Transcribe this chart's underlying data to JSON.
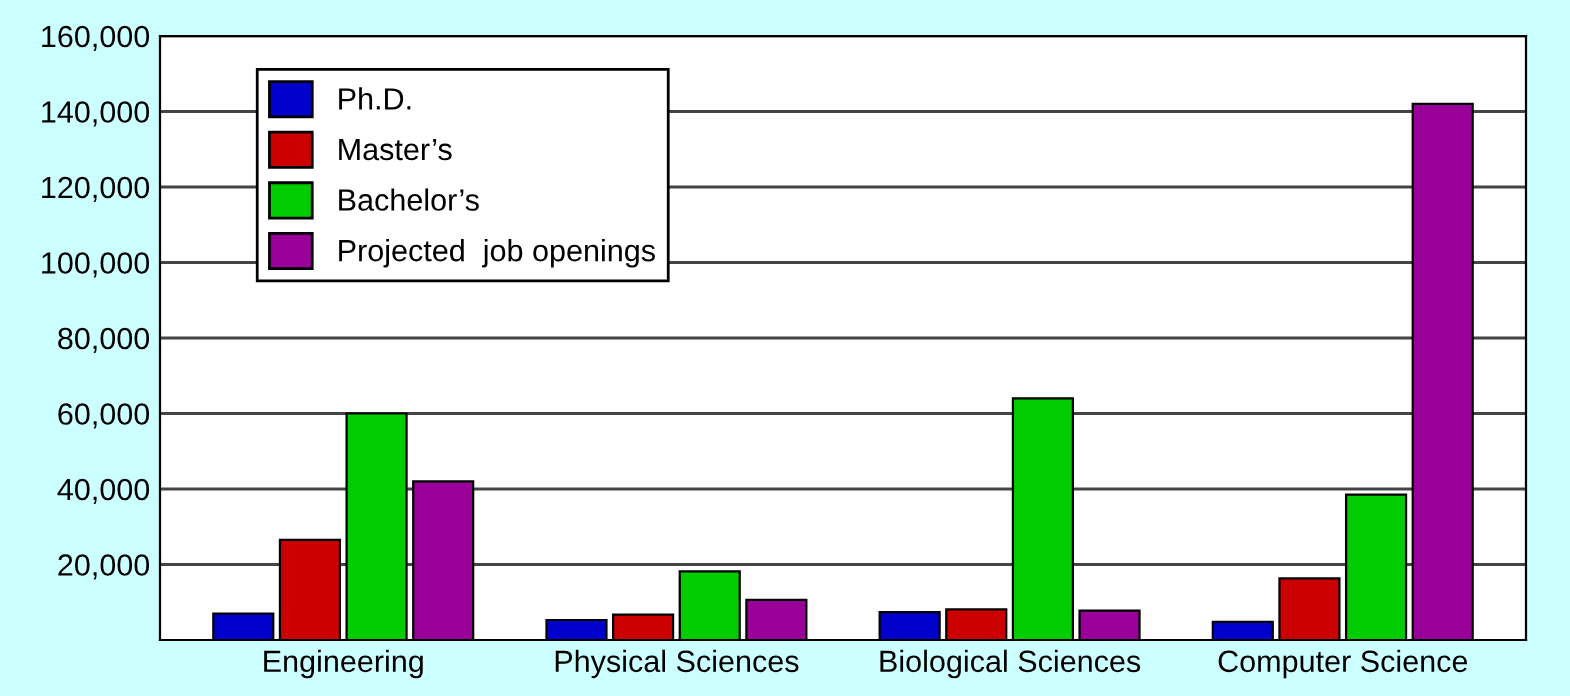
{
  "chart_data": {
    "type": "bar",
    "categories": [
      "Engineering",
      "Physical Sciences",
      "Biological Sciences",
      "Computer Science"
    ],
    "series": [
      {
        "name": "Ph.D.",
        "color": "#0000cc",
        "values": [
          7000,
          5300,
          7400,
          4800
        ]
      },
      {
        "name": "Master’s",
        "color": "#cc0000",
        "values": [
          26500,
          6700,
          8100,
          16300
        ]
      },
      {
        "name": "Bachelor’s",
        "color": "#00cc00",
        "values": [
          60000,
          18200,
          64000,
          38500
        ]
      },
      {
        "name": "Projected  job openings",
        "color": "#990099",
        "values": [
          42000,
          10600,
          7800,
          142000
        ]
      }
    ],
    "ylim": [
      0,
      160000
    ],
    "yticks": [
      {
        "value": 20000,
        "label": "20,000"
      },
      {
        "value": 40000,
        "label": "40,000"
      },
      {
        "value": 60000,
        "label": "60,000"
      },
      {
        "value": 80000,
        "label": "80,000"
      },
      {
        "value": 100000,
        "label": "100,000"
      },
      {
        "value": 120000,
        "label": "120,000"
      },
      {
        "value": 140000,
        "label": "140,000"
      },
      {
        "value": 160000,
        "label": "160,000"
      }
    ],
    "grid": "y",
    "legend": "top left"
  }
}
